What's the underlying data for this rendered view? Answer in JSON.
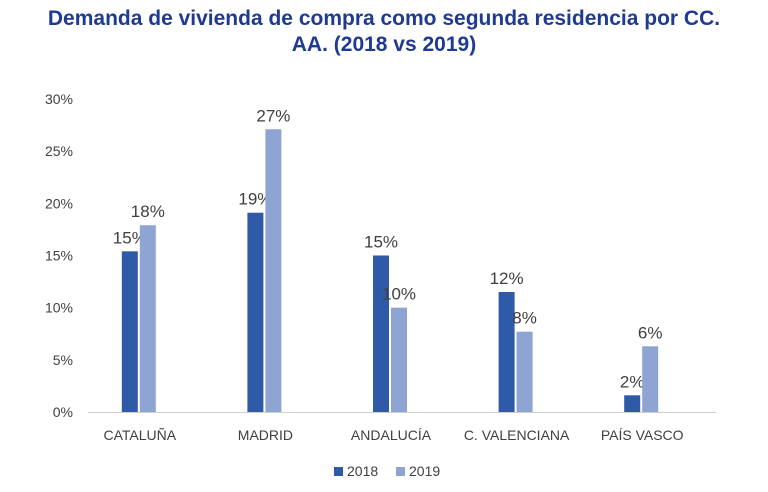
{
  "chart_data": {
    "type": "bar",
    "title_lines": [
      "Demanda de vivienda de compra como segunda residencia por CC.",
      "AA. (2018 vs 2019)"
    ],
    "categories": [
      "CATALUÑA",
      "MADRID",
      "ANDALUCÍA",
      "C. VALENCIANA",
      "PAÍS VASCO"
    ],
    "series": [
      {
        "name": "2018",
        "color": "#2e5aa8",
        "values": [
          15.4,
          19.1,
          15.0,
          11.5,
          1.6
        ],
        "labels": [
          "15%",
          "19%",
          "15%",
          "12%",
          "2%"
        ]
      },
      {
        "name": "2019",
        "color": "#8ea5d4",
        "values": [
          17.9,
          27.1,
          10.0,
          7.7,
          6.3
        ],
        "labels": [
          "18%",
          "27%",
          "10%",
          "8%",
          "6%"
        ]
      }
    ],
    "ylim": [
      0,
      30
    ],
    "yticks": [
      "0%",
      "5%",
      "10%",
      "15%",
      "20%",
      "25%",
      "30%"
    ],
    "grid": false,
    "legend_position": "bottom"
  }
}
